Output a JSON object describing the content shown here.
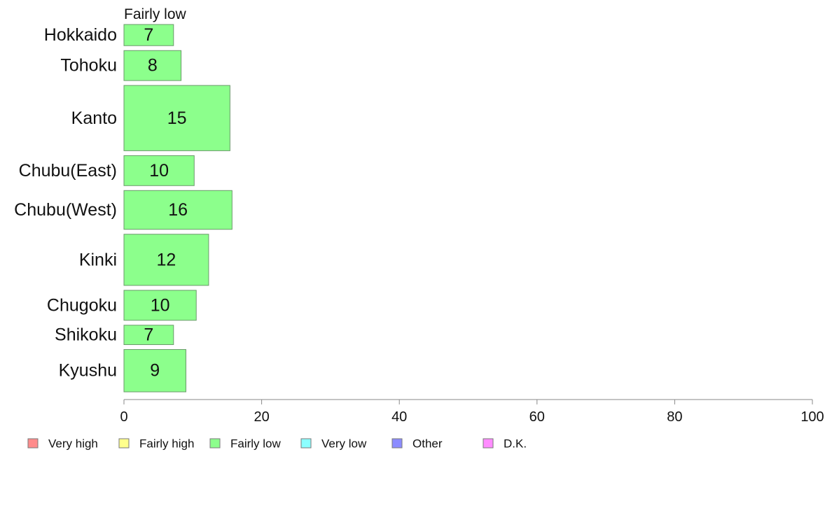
{
  "chart_data": {
    "type": "bar",
    "orientation": "horizontal",
    "panel_title": "Fairly low",
    "categories": [
      "Hokkaido",
      "Tohoku",
      "Kanto",
      "Chubu(East)",
      "Chubu(West)",
      "Kinki",
      "Chugoku",
      "Shikoku",
      "Kyushu"
    ],
    "category_weights": [
      0.6,
      0.85,
      1.85,
      0.85,
      1.1,
      1.45,
      0.85,
      0.55,
      1.2
    ],
    "values": [
      7.2,
      8.3,
      15.4,
      10.2,
      15.7,
      12.3,
      10.5,
      7.2,
      9.0
    ],
    "value_labels": [
      "7",
      "8",
      "15",
      "10",
      "16",
      "12",
      "10",
      "7",
      "9"
    ],
    "series_color": "#8cff8c",
    "bar_edge_color": "#6a9a6a",
    "xlim": [
      0,
      100
    ],
    "xticks": [
      0,
      20,
      40,
      60,
      80,
      100
    ],
    "xtick_labels": [
      "0",
      "20",
      "40",
      "60",
      "80",
      "100"
    ],
    "grid": false,
    "legend": {
      "placement": "bottom",
      "entries": [
        {
          "label": "Very high",
          "color": "#ff8c8c"
        },
        {
          "label": "Fairly high",
          "color": "#ffff8c"
        },
        {
          "label": "Fairly low",
          "color": "#8cff8c"
        },
        {
          "label": "Very low",
          "color": "#8cffff"
        },
        {
          "label": "Other",
          "color": "#8c8cff"
        },
        {
          "label": "D.K.",
          "color": "#ff8cff"
        }
      ]
    }
  }
}
